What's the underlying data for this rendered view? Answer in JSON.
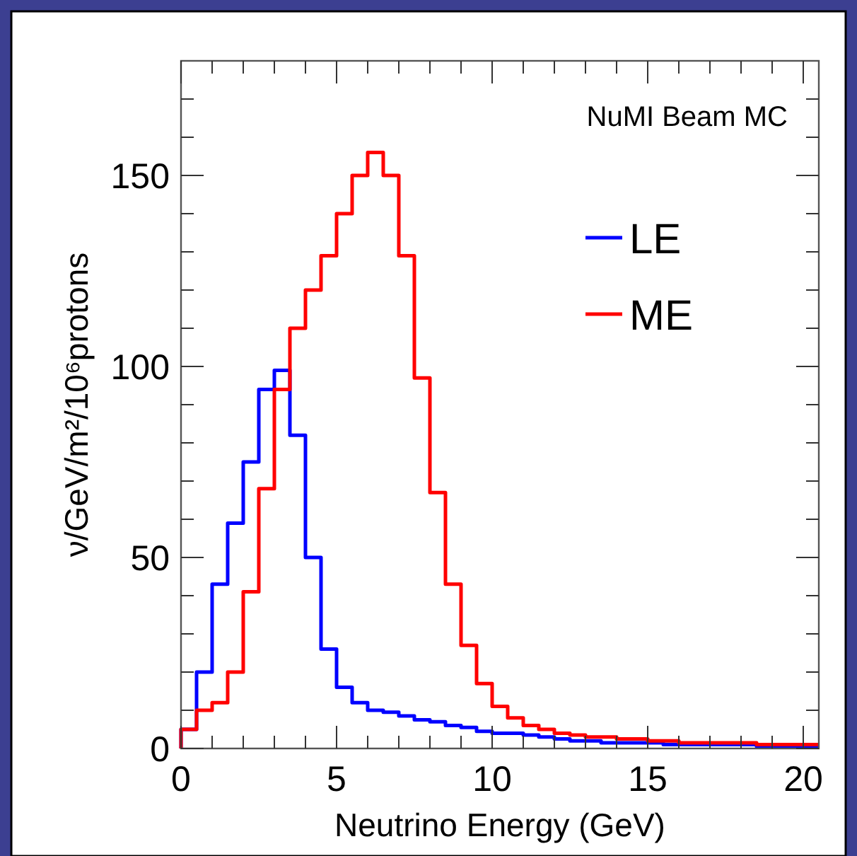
{
  "chart_data": {
    "type": "histogram",
    "xlabel": "Neutrino Energy (GeV)",
    "ylabel": "ν/GeV/m²/10⁶protons",
    "annotations": [
      "NuMI Beam MC"
    ],
    "bins": [
      0,
      0.5,
      1,
      1.5,
      2,
      2.5,
      3,
      3.5,
      4,
      4.5,
      5,
      5.5,
      6,
      6.5,
      7,
      7.5,
      8,
      8.5,
      9,
      9.5,
      10,
      10.5,
      11,
      11.5,
      12,
      12.5,
      13,
      13.5,
      14,
      14.5,
      15,
      15.5,
      16,
      16.5,
      17,
      17.5,
      18,
      18.5,
      19,
      19.5,
      20,
      20.5
    ],
    "series": [
      {
        "name": "LE",
        "color": "#0000ff",
        "values": [
          5,
          20,
          43,
          59,
          75,
          94,
          99,
          82,
          50,
          26,
          16,
          12,
          10,
          9.5,
          8.5,
          7.5,
          7,
          6,
          5.5,
          4.5,
          4,
          4,
          3.5,
          3,
          2.5,
          2,
          2,
          1.5,
          1.5,
          1.5,
          1.5,
          1,
          1,
          1,
          1,
          1,
          1,
          0.5,
          0.5,
          0.5,
          0.5
        ]
      },
      {
        "name": "ME",
        "color": "#ff0000",
        "values": [
          5,
          10,
          12,
          20,
          41,
          68,
          94,
          110,
          120,
          129,
          140,
          150,
          156,
          150,
          129,
          97,
          67,
          43,
          27,
          17,
          11,
          8,
          6,
          5,
          4,
          3.5,
          3,
          3,
          2.5,
          2.5,
          2,
          2,
          1.5,
          1.5,
          1.5,
          1.5,
          1.5,
          1,
          1,
          1,
          1
        ]
      }
    ],
    "xlim": [
      0,
      20.5
    ],
    "ylim": [
      0,
      180
    ],
    "xticks": [
      0,
      {
        "value": 1,
        "label": null
      },
      {
        "value": 2,
        "label": null
      },
      {
        "value": 3,
        "label": null
      },
      {
        "value": 4,
        "label": null
      },
      5,
      {
        "value": 6,
        "label": null
      },
      {
        "value": 7,
        "label": null
      },
      {
        "value": 8,
        "label": null
      },
      {
        "value": 9,
        "label": null
      },
      10,
      {
        "value": 11,
        "label": null
      },
      {
        "value": 12,
        "label": null
      },
      {
        "value": 13,
        "label": null
      },
      {
        "value": 14,
        "label": null
      },
      15,
      {
        "value": 16,
        "label": null
      },
      {
        "value": 17,
        "label": null
      },
      {
        "value": 18,
        "label": null
      },
      {
        "value": 19,
        "label": null
      },
      20
    ],
    "yticks": [
      0,
      {
        "value": 10,
        "label": null
      },
      {
        "value": 20,
        "label": null
      },
      {
        "value": 30,
        "label": null
      },
      {
        "value": 40,
        "label": null
      },
      50,
      {
        "value": 60,
        "label": null
      },
      {
        "value": 70,
        "label": null
      },
      {
        "value": 80,
        "label": null
      },
      {
        "value": 90,
        "label": null
      },
      100,
      {
        "value": 110,
        "label": null
      },
      {
        "value": 120,
        "label": null
      },
      {
        "value": 130,
        "label": null
      },
      {
        "value": 140,
        "label": null
      },
      150,
      {
        "value": 160,
        "label": null
      },
      {
        "value": 170,
        "label": null
      }
    ],
    "grid": false,
    "legend": "top right"
  }
}
